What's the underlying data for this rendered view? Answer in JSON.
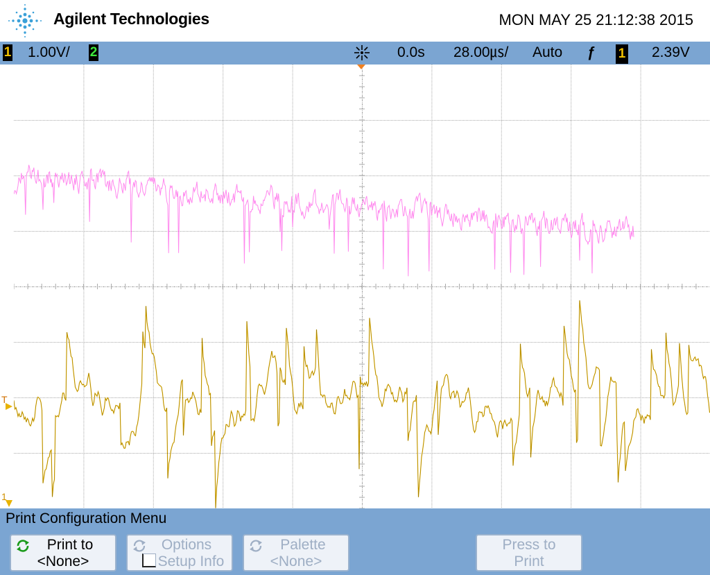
{
  "header": {
    "brand": "Agilent Technologies",
    "datetime": "MON MAY 25 21:12:38 2015"
  },
  "status": {
    "ch1_num": "1",
    "ch1_scale": "1.00V/",
    "ch2_num": "2",
    "delay": "0.0s",
    "timebase": "28.00㎲/",
    "trigger_mode": "Auto",
    "trigger_slope": "ƒ",
    "trigger_source": "1",
    "trigger_level": "2.39V"
  },
  "markers": {
    "trigger_marker": "T",
    "ch1_ground_marker": "1"
  },
  "menu": {
    "title": "Print Configuration Menu",
    "softkeys": [
      {
        "line1": "Print to",
        "line2": "<None>"
      },
      {
        "line1": "Options",
        "line2": "Setup Info"
      },
      {
        "line1": "Palette",
        "line2": "<None>"
      },
      {
        "line1": "Press to",
        "line2": "Print"
      }
    ]
  },
  "colors": {
    "ch1_trace": "#e8b300",
    "ch2_trace": "#ff88ee",
    "status_bar": "#7ba5d2",
    "grid": "#a8a8a8",
    "trigger_marker": "#f08020"
  },
  "icons": {
    "logo": "agilent-spark-icon",
    "acquire": "acquisition-run-icon",
    "trigger_slope": "rising-edge-icon",
    "cycle": "cycle-arrows-icon"
  }
}
